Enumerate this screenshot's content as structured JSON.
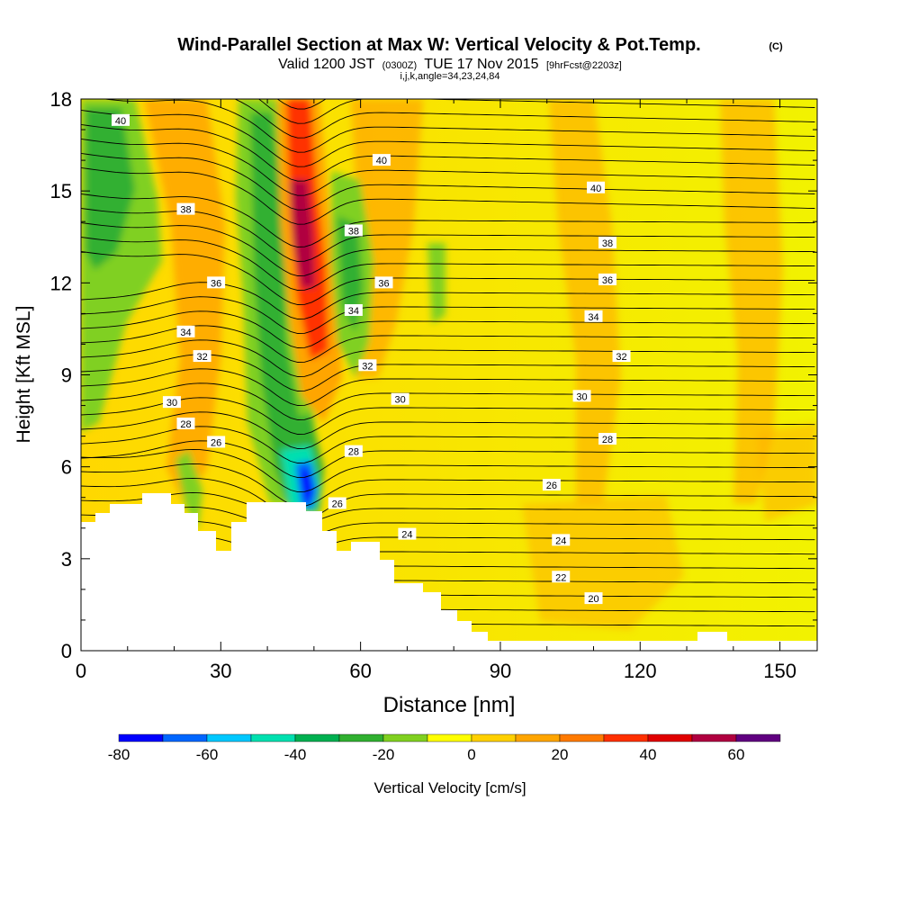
{
  "chart_data": {
    "type": "heatmap",
    "title": "Wind-Parallel Section at Max W: Vertical Velocity & Pot.Temp.",
    "title_mark": "(C)",
    "subtitle_parts": [
      "Valid 1200 JST",
      "(0300Z)",
      "TUE 17 Nov 2015",
      "[9hrFcst@2203z]"
    ],
    "subtitle2": "i,j,k,angle=34,23,24,84",
    "xlabel": "Distance [nm]",
    "ylabel": "Height [Kft MSL]",
    "xlim": [
      0,
      158
    ],
    "ylim": [
      0,
      18
    ],
    "xticks": [
      "0",
      "30",
      "60",
      "90",
      "120",
      "150"
    ],
    "yticks": [
      "0",
      "3",
      "6",
      "9",
      "12",
      "15",
      "18"
    ],
    "colorbar": {
      "label": "Vertical Velocity [cm/s]",
      "levels": [
        -80,
        -70,
        -60,
        -50,
        -40,
        -30,
        -20,
        -10,
        0,
        10,
        20,
        30,
        40,
        50,
        60,
        70
      ],
      "tick_labels": [
        "-80",
        "-60",
        "-40",
        "-20",
        "0",
        "20",
        "40",
        "60"
      ],
      "colors": [
        "#0000ff",
        "#0066ff",
        "#00c8ff",
        "#00e0b0",
        "#00b050",
        "#30b030",
        "#80d020",
        "#ffff00",
        "#ffd000",
        "#ffa500",
        "#ff7a00",
        "#ff3000",
        "#e00000",
        "#b00040",
        "#600080"
      ]
    },
    "theta_contour_labels": [
      {
        "value": "40",
        "x": 8.5,
        "y": 17.3
      },
      {
        "value": "40",
        "x": 64.5,
        "y": 16.0
      },
      {
        "value": "40",
        "x": 110.5,
        "y": 15.1
      },
      {
        "value": "38",
        "x": 22.5,
        "y": 14.4
      },
      {
        "value": "38",
        "x": 58.5,
        "y": 13.7
      },
      {
        "value": "38",
        "x": 113,
        "y": 13.3
      },
      {
        "value": "36",
        "x": 29,
        "y": 12.0
      },
      {
        "value": "36",
        "x": 65,
        "y": 12.0
      },
      {
        "value": "36",
        "x": 113,
        "y": 12.1
      },
      {
        "value": "34",
        "x": 22.5,
        "y": 10.4
      },
      {
        "value": "34",
        "x": 58.5,
        "y": 11.1
      },
      {
        "value": "34",
        "x": 110,
        "y": 10.9
      },
      {
        "value": "32",
        "x": 26,
        "y": 9.6
      },
      {
        "value": "32",
        "x": 61.5,
        "y": 9.3
      },
      {
        "value": "32",
        "x": 116,
        "y": 9.6
      },
      {
        "value": "30",
        "x": 19.5,
        "y": 8.1
      },
      {
        "value": "30",
        "x": 68.5,
        "y": 8.2
      },
      {
        "value": "30",
        "x": 107.5,
        "y": 8.3
      },
      {
        "value": "28",
        "x": 22.5,
        "y": 7.4
      },
      {
        "value": "28",
        "x": 58.5,
        "y": 6.5
      },
      {
        "value": "28",
        "x": 113,
        "y": 6.9
      },
      {
        "value": "26",
        "x": 29,
        "y": 6.8
      },
      {
        "value": "26",
        "x": 55,
        "y": 4.8
      },
      {
        "value": "26",
        "x": 101,
        "y": 5.4
      },
      {
        "value": "24",
        "x": 70,
        "y": 3.8
      },
      {
        "value": "24",
        "x": 103,
        "y": 3.6
      },
      {
        "value": "22",
        "x": 103,
        "y": 2.4
      },
      {
        "value": "20",
        "x": 110,
        "y": 1.7
      }
    ]
  }
}
